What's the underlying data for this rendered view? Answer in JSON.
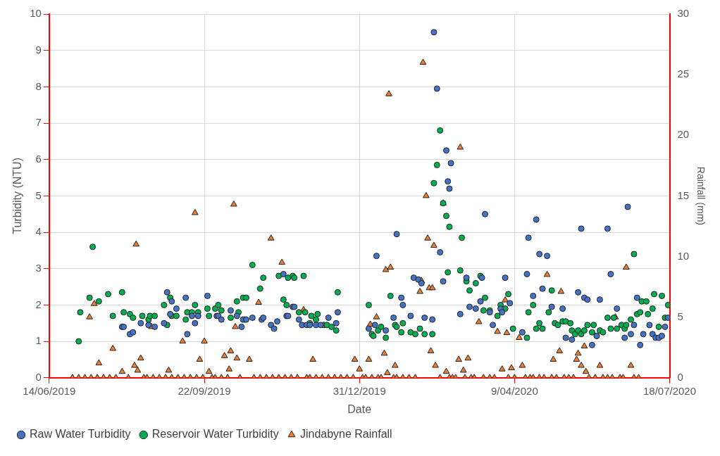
{
  "chart_data": {
    "type": "scatter",
    "xlabel": "Date",
    "ylabel": "Turbidity (NTU)",
    "y2label": "Rainfall (mm)",
    "xlim": [
      "2019-06-14",
      "2020-07-18"
    ],
    "xticks": [
      {
        "value": "2019-06-14",
        "label": "14/06/2019"
      },
      {
        "value": "2019-09-22",
        "label": "22/09/2019"
      },
      {
        "value": "2019-12-31",
        "label": "31/12/2019"
      },
      {
        "value": "2020-04-09",
        "label": "9/04/2020"
      },
      {
        "value": "2020-07-18",
        "label": "18/07/2020"
      }
    ],
    "ylim": [
      0,
      10
    ],
    "yticks": [
      0,
      1,
      2,
      3,
      4,
      5,
      6,
      7,
      8,
      9,
      10
    ],
    "y2lim": [
      0,
      30
    ],
    "y2ticks": [
      0,
      5,
      10,
      15,
      20,
      25,
      30
    ],
    "grid": true,
    "legend": "bottom left",
    "series": [
      {
        "name": "Raw Water Turbidity",
        "color": "#4472c4",
        "marker": "circle",
        "x": [
          "2019-07-31",
          "2019-08-01",
          "2019-08-05",
          "2019-08-07",
          "2019-08-12",
          "2019-08-17",
          "2019-08-21",
          "2019-08-27",
          "2019-08-29",
          "2019-08-31",
          "2019-09-01",
          "2019-09-04",
          "2019-09-10",
          "2019-09-11",
          "2019-09-14",
          "2019-09-16",
          "2019-09-18",
          "2019-09-24",
          "2019-09-30",
          "2019-10-01",
          "2019-10-03",
          "2019-10-09",
          "2019-10-13",
          "2019-10-16",
          "2019-10-18",
          "2019-10-17",
          "2019-10-19",
          "2019-10-23",
          "2019-10-29",
          "2019-10-30",
          "2019-11-04",
          "2019-11-06",
          "2019-11-08",
          "2019-11-12",
          "2019-11-14",
          "2019-11-15",
          "2019-11-18",
          "2019-11-19",
          "2019-11-22",
          "2019-11-24",
          "2019-11-27",
          "2019-11-29",
          "2019-12-03",
          "2019-12-06",
          "2019-12-11",
          "2019-12-16",
          "2019-12-17",
          "2020-01-06",
          "2020-01-10",
          "2020-01-17",
          "2020-01-11",
          "2020-01-24",
          "2020-01-27",
          "2020-01-28",
          "2020-01-22",
          "2020-02-02",
          "2020-02-04",
          "2020-02-07",
          "2020-02-09",
          "2020-02-11",
          "2020-02-16",
          "2020-02-17",
          "2020-02-19",
          "2020-02-25",
          "2020-02-28",
          "2020-02-26",
          "2020-02-27",
          "2020-03-21",
          "2020-02-21",
          "2020-02-23",
          "2020-03-09",
          "2020-03-19",
          "2020-03-18",
          "2020-04-03",
          "2020-03-11",
          "2020-03-15",
          "2020-03-05",
          "2020-03-24",
          "2020-03-26",
          "2020-03-31",
          "2020-04-01",
          "2020-04-06",
          "2020-04-14",
          "2020-04-18",
          "2020-04-23",
          "2020-04-25",
          "2020-04-30",
          "2020-04-17",
          "2020-04-27",
          "2020-04-21",
          "2020-05-03",
          "2020-05-10",
          "2020-05-20",
          "2020-05-24",
          "2020-05-26",
          "2020-06-03",
          "2020-05-22",
          "2020-06-08",
          "2020-06-21",
          "2020-06-10",
          "2020-05-12",
          "2020-05-16",
          "2020-05-29",
          "2020-06-01",
          "2020-06-14",
          "2020-06-19",
          "2020-06-23",
          "2020-06-25",
          "2020-06-27",
          "2020-06-29",
          "2020-07-01",
          "2020-07-05",
          "2020-07-07",
          "2020-07-09",
          "2020-07-11",
          "2020-07-13",
          "2020-07-15",
          "2020-07-17"
        ],
        "values": [
          1.4,
          1.4,
          1.2,
          1.25,
          1.5,
          1.45,
          1.4,
          1.5,
          2.35,
          1.75,
          2.1,
          1.9,
          2.2,
          1.2,
          1.7,
          1.5,
          1.7,
          2.25,
          1.7,
          1.7,
          1.6,
          1.85,
          1.7,
          1.4,
          1.6,
          1.6,
          1.6,
          1.65,
          1.6,
          1.65,
          1.45,
          1.35,
          1.55,
          2.85,
          1.7,
          1.7,
          1.95,
          1.95,
          1.6,
          1.45,
          1.45,
          1.45,
          1.45,
          1.45,
          1.65,
          1.5,
          1.8,
          1.35,
          1.45,
          1.3,
          3.35,
          3.95,
          2.2,
          2.0,
          1.65,
          1.7,
          2.75,
          2.7,
          2.6,
          1.65,
          1.6,
          9.5,
          7.95,
          6.25,
          5.9,
          5.4,
          5.2,
          4.5,
          3.45,
          2.65,
          2.75,
          2.75,
          2.1,
          2.75,
          1.95,
          1.9,
          1.75,
          1.8,
          1.45,
          1.9,
          1.8,
          2.05,
          1.25,
          3.85,
          4.35,
          3.4,
          3.35,
          2.85,
          2.45,
          2.25,
          1.95,
          1.9,
          2.35,
          2.2,
          2.15,
          2.15,
          4.1,
          4.1,
          4.7,
          2.85,
          1.1,
          1.05,
          0.9,
          1.15,
          1.9,
          1.1,
          1.2,
          1.45,
          2.2,
          0.9,
          1.2,
          1.45,
          1.2,
          1.1,
          1.1,
          1.15,
          1.4,
          1.65
        ]
      },
      {
        "name": "Reservoir Water Turbidity",
        "color": "#00b050",
        "marker": "circle",
        "x": [
          "2019-07-03",
          "2019-07-04",
          "2019-07-10",
          "2019-07-12",
          "2019-07-16",
          "2019-07-22",
          "2019-07-25",
          "2019-07-31",
          "2019-08-01",
          "2019-08-05",
          "2019-08-07",
          "2019-08-13",
          "2019-08-17",
          "2019-08-18",
          "2019-08-21",
          "2019-08-27",
          "2019-08-29",
          "2019-08-31",
          "2019-09-01",
          "2019-09-04",
          "2019-09-10",
          "2019-09-11",
          "2019-09-14",
          "2019-09-16",
          "2019-09-18",
          "2019-09-24",
          "2019-09-25",
          "2019-09-29",
          "2019-10-01",
          "2019-10-03",
          "2019-10-09",
          "2019-10-13",
          "2019-10-14",
          "2019-10-17",
          "2019-10-19",
          "2019-10-23",
          "2019-10-28",
          "2019-10-30",
          "2019-11-09",
          "2019-11-12",
          "2019-11-14",
          "2019-11-15",
          "2019-11-18",
          "2019-11-19",
          "2019-11-25",
          "2019-11-22",
          "2019-11-26",
          "2019-11-29",
          "2019-11-30",
          "2019-12-03",
          "2019-12-04",
          "2019-12-08",
          "2019-12-10",
          "2019-12-13",
          "2019-12-16",
          "2019-12-17",
          "2020-01-06",
          "2020-01-08",
          "2020-01-09",
          "2020-01-12",
          "2020-01-14",
          "2020-01-17",
          "2020-01-20",
          "2020-01-23",
          "2020-01-24",
          "2020-01-27",
          "2020-01-28",
          "2020-02-02",
          "2020-02-05",
          "2020-02-08",
          "2020-02-11",
          "2020-02-16",
          "2020-02-17",
          "2020-02-19",
          "2020-02-21",
          "2020-02-23",
          "2020-02-25",
          "2020-02-27",
          "2020-03-06",
          "2020-02-26",
          "2020-03-05",
          "2020-03-09",
          "2020-03-11",
          "2020-03-15",
          "2020-03-18",
          "2020-03-21",
          "2020-03-20",
          "2020-03-24",
          "2020-03-29",
          "2020-03-31",
          "2020-04-03",
          "2020-04-05",
          "2020-04-08",
          "2020-04-17",
          "2020-04-18",
          "2020-04-21",
          "2020-04-23",
          "2020-04-25",
          "2020-04-27",
          "2020-05-01",
          "2020-05-03",
          "2020-05-05",
          "2020-05-07",
          "2020-05-10",
          "2020-05-12",
          "2020-05-15",
          "2020-05-16",
          "2020-05-18",
          "2020-05-20",
          "2020-05-22",
          "2020-05-24",
          "2020-05-26",
          "2020-05-29",
          "2020-05-30",
          "2020-06-01",
          "2020-06-03",
          "2020-06-05",
          "2020-06-08",
          "2020-06-10",
          "2020-06-12",
          "2020-06-14",
          "2020-06-17",
          "2020-06-19",
          "2020-06-20",
          "2020-06-23",
          "2020-06-25",
          "2020-06-27",
          "2020-06-29",
          "2020-06-30",
          "2020-07-03",
          "2020-07-04",
          "2020-07-07",
          "2020-07-08",
          "2020-07-11",
          "2020-07-13",
          "2020-07-15",
          "2020-07-17"
        ],
        "values": [
          1.0,
          1.8,
          2.2,
          3.6,
          2.1,
          2.3,
          1.7,
          2.35,
          1.8,
          1.75,
          1.65,
          1.7,
          1.6,
          1.7,
          1.7,
          2.0,
          1.45,
          2.2,
          1.7,
          1.7,
          1.6,
          1.8,
          1.8,
          2.0,
          1.8,
          1.9,
          1.7,
          1.9,
          2.0,
          1.85,
          1.65,
          2.1,
          1.8,
          2.2,
          2.2,
          3.1,
          2.45,
          2.75,
          2.8,
          2.15,
          2.0,
          2.75,
          2.8,
          2.75,
          2.8,
          1.8,
          1.8,
          1.5,
          1.7,
          1.6,
          1.75,
          1.45,
          1.45,
          1.4,
          1.3,
          2.35,
          2.0,
          1.2,
          1.15,
          1.3,
          1.4,
          1.1,
          2.25,
          1.45,
          1.4,
          1.25,
          1.5,
          1.25,
          1.2,
          1.35,
          1.2,
          1.2,
          5.35,
          5.85,
          6.8,
          4.8,
          4.45,
          4.15,
          3.85,
          2.9,
          2.95,
          2.65,
          2.4,
          2.6,
          2.8,
          2.2,
          1.85,
          1.85,
          1.7,
          2.0,
          1.9,
          2.3,
          1.35,
          1.1,
          1.8,
          2.0,
          1.35,
          1.5,
          1.35,
          1.8,
          2.4,
          1.5,
          1.45,
          1.55,
          1.55,
          1.5,
          1.3,
          1.2,
          1.3,
          1.2,
          1.3,
          1.45,
          1.25,
          1.45,
          1.15,
          1.3,
          1.25,
          1.65,
          1.35,
          1.65,
          1.35,
          1.45,
          1.35,
          1.45,
          1.6,
          3.4,
          1.75,
          1.8,
          2.1,
          2.1,
          1.75,
          1.9,
          2.3,
          1.4,
          2.25,
          1.65,
          2.0
        ]
      },
      {
        "name": "Jindabyne Rainfall",
        "color": "#ed7d31",
        "marker": "triangle",
        "axis": "y2",
        "x": [
          "2019-07-10",
          "2019-07-13",
          "2019-07-16",
          "2019-07-25",
          "2019-07-31",
          "2019-08-09",
          "2019-08-08",
          "2019-08-10",
          "2019-08-12",
          "2019-08-19",
          "2019-08-30",
          "2019-09-08",
          "2019-09-16",
          "2019-09-19",
          "2019-09-22",
          "2019-09-25",
          "2019-10-05",
          "2019-10-09",
          "2019-10-08",
          "2019-10-13",
          "2019-10-11",
          "2019-10-12",
          "2019-10-21",
          "2019-10-27",
          "2019-11-04",
          "2019-11-11",
          "2019-11-25",
          "2019-12-01",
          "2019-12-28",
          "2019-12-31",
          "2020-01-06",
          "2020-01-07",
          "2020-01-11",
          "2020-01-16",
          "2020-01-17",
          "2020-01-20",
          "2020-01-19",
          "2020-01-18",
          "2020-01-23",
          "2020-02-08",
          "2020-02-09",
          "2020-02-14",
          "2020-02-16",
          "2020-02-10",
          "2020-02-12",
          "2020-02-13",
          "2020-02-17",
          "2020-02-15",
          "2020-02-18",
          "2020-02-23",
          "2020-03-05",
          "2020-02-25",
          "2020-03-04",
          "2020-03-10",
          "2020-03-07",
          "2020-03-17",
          "2020-03-29",
          "2020-04-04",
          "2020-04-03",
          "2020-04-01",
          "2020-04-07",
          "2020-04-12",
          "2020-04-14",
          "2020-04-30",
          "2020-05-04",
          "2020-05-08",
          "2020-05-09",
          "2020-05-19",
          "2020-05-20",
          "2020-05-22",
          "2020-05-24",
          "2020-05-25",
          "2020-06-03",
          "2020-06-13",
          "2020-06-20",
          "2020-06-23",
          "2019-06-29",
          "2019-07-03",
          "2019-07-07",
          "2019-07-11",
          "2019-07-15",
          "2019-07-19",
          "2019-07-23",
          "2019-07-27",
          "2019-08-04",
          "2019-08-14",
          "2019-08-16",
          "2019-08-20",
          "2019-08-24",
          "2019-08-28",
          "2019-09-01",
          "2019-09-05",
          "2019-09-09",
          "2019-09-13",
          "2019-09-17",
          "2019-09-21",
          "2019-09-27",
          "2019-09-29",
          "2019-10-03",
          "2019-10-07",
          "2019-10-15",
          "2019-10-24",
          "2019-10-28",
          "2019-11-01",
          "2019-11-05",
          "2019-11-09",
          "2019-11-13",
          "2019-11-17",
          "2019-11-21",
          "2019-11-27",
          "2019-11-29",
          "2019-12-03",
          "2019-12-07",
          "2019-12-11",
          "2019-12-15",
          "2019-12-19",
          "2019-12-23",
          "2019-12-27",
          "2020-01-02",
          "2020-01-04",
          "2020-01-08",
          "2020-01-12",
          "2020-01-14",
          "2020-01-22",
          "2020-01-24",
          "2020-01-28",
          "2020-02-01",
          "2020-02-05",
          "2020-02-21",
          "2020-02-27",
          "2020-02-29",
          "2020-03-02",
          "2020-03-08",
          "2020-03-12",
          "2020-03-14",
          "2020-03-20",
          "2020-03-24",
          "2020-03-27",
          "2020-04-05",
          "2020-04-09",
          "2020-04-16",
          "2020-04-19",
          "2020-04-21",
          "2020-04-25",
          "2020-04-28",
          "2020-05-03",
          "2020-05-06",
          "2020-05-11",
          "2020-05-14",
          "2020-05-17",
          "2020-05-27",
          "2020-05-31",
          "2020-06-05",
          "2020-06-08",
          "2020-06-11",
          "2020-06-16",
          "2020-06-18",
          "2020-06-25",
          "2020-06-28"
        ],
        "values": [
          5.0,
          6.1,
          1.2,
          2.4,
          0.5,
          11.0,
          1.0,
          0.6,
          1.6,
          4.2,
          0.6,
          3.0,
          13.6,
          1.5,
          3.0,
          0.5,
          1.8,
          2.2,
          0.7,
          1.6,
          14.3,
          4.2,
          1.5,
          6.2,
          11.5,
          9.5,
          5.6,
          1.5,
          1.5,
          0.7,
          1.5,
          4.4,
          5.0,
          2.0,
          8.9,
          9.1,
          23.4,
          0.4,
          1.0,
          7.1,
          8.0,
          7.4,
          7.4,
          26.0,
          15.0,
          11.5,
          10.9,
          2.2,
          1.0,
          14.4,
          19.0,
          0.5,
          1.5,
          1.6,
          0.6,
          4.6,
          3.8,
          3.7,
          6.4,
          0.7,
          0.8,
          3.3,
          1.0,
          8.5,
          1.5,
          2.2,
          7.1,
          1.5,
          2.0,
          1.0,
          2.6,
          0.5,
          1.0,
          5.0,
          9.1,
          1.0,
          0,
          0,
          0,
          0,
          0,
          0,
          0,
          0,
          0,
          0,
          0,
          0,
          0,
          0,
          0,
          0,
          0,
          0,
          0,
          0,
          0,
          0,
          0,
          0,
          0,
          0,
          0,
          0,
          0,
          0,
          0,
          0,
          0,
          0,
          0,
          0,
          0,
          0,
          0,
          0,
          0,
          0,
          0,
          0,
          0,
          0,
          0,
          0,
          0,
          0,
          0,
          0,
          0,
          0,
          0,
          0,
          0,
          0,
          0,
          0,
          0,
          0,
          0,
          0,
          0,
          0,
          0,
          0,
          0,
          0,
          0,
          0,
          0,
          0,
          0,
          0,
          0,
          0,
          0,
          0,
          0,
          0,
          0
        ]
      }
    ]
  }
}
